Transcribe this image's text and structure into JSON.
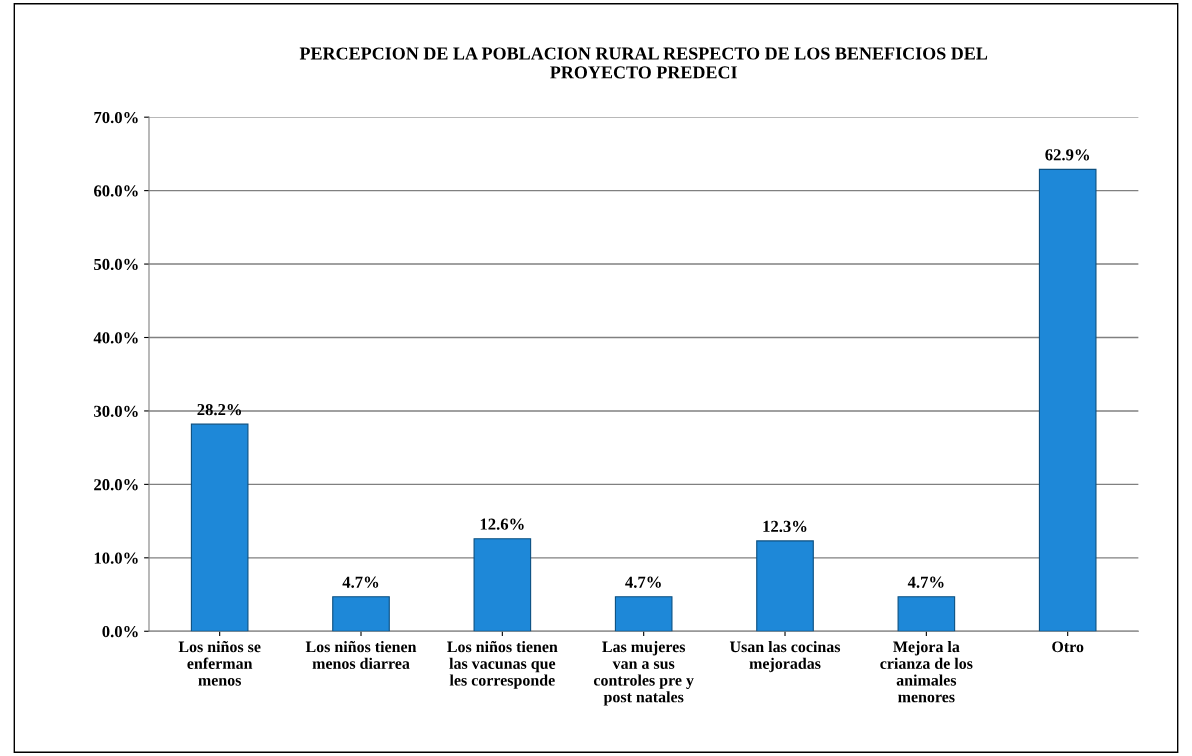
{
  "chart_data": {
    "type": "bar",
    "title": "PERCEPCION DE LA POBLACION RURAL RESPECTO DE LOS BENEFICIOS DEL\nPROYECTO PREDECI",
    "categories": [
      "Los niños se\nenferman\nmenos",
      "Los niños tienen\nmenos diarrea",
      "Los niños tienen\nlas vacunas que\nles corresponde",
      "Las mujeres\nvan a sus\ncontroles pre y\npost natales",
      "Usan las cocinas\nmejoradas",
      "Mejora la\ncrianza de los\nanimales\nmenores",
      "Otro"
    ],
    "values": [
      28.2,
      4.7,
      12.6,
      4.7,
      12.3,
      4.7,
      62.9
    ],
    "value_labels": [
      "28.2%",
      "4.7%",
      "12.6%",
      "4.7%",
      "12.3%",
      "4.7%",
      "62.9%"
    ],
    "color": "#1e88d8",
    "ylim": [
      0,
      70
    ],
    "yticks": [
      {
        "value": 0,
        "label": "0.0%"
      },
      {
        "value": 10,
        "label": "10.0%"
      },
      {
        "value": 20,
        "label": "20.0%"
      },
      {
        "value": 30,
        "label": "30.0%"
      },
      {
        "value": 40,
        "label": "40.0%"
      },
      {
        "value": 50,
        "label": "50.0%"
      },
      {
        "value": 60,
        "label": "60.0%"
      },
      {
        "value": 70,
        "label": "70.0%"
      }
    ],
    "grid": "y"
  }
}
